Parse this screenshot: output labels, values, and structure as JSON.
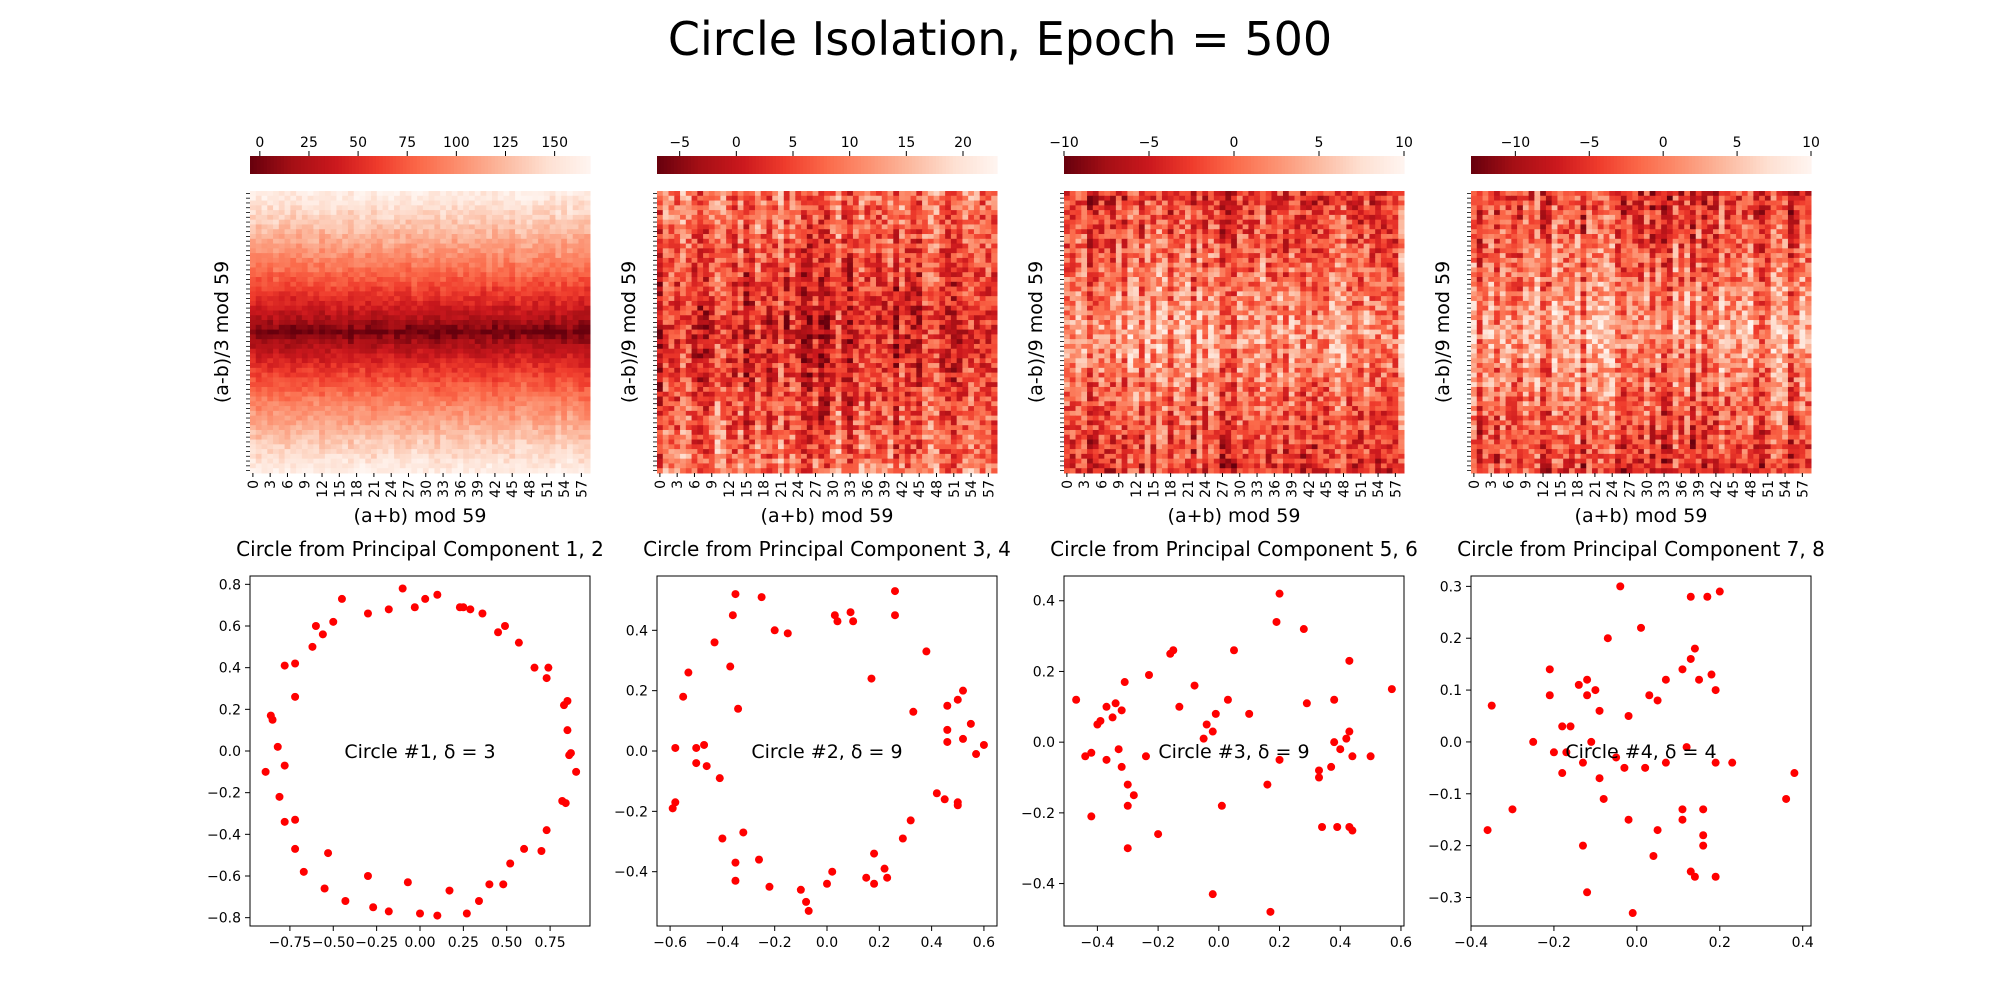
{
  "figure": {
    "title": "Circle Isolation, Epoch = 500"
  },
  "chart_data": [
    {
      "type": "heatmap",
      "xlabel": "(a+b) mod 59",
      "ylabel": "(a-b)/3 mod 59",
      "x_tick_labels": [
        "0",
        "3",
        "6",
        "9",
        "12",
        "15",
        "18",
        "21",
        "24",
        "27",
        "30",
        "33",
        "36",
        "39",
        "42",
        "45",
        "48",
        "51",
        "54",
        "57"
      ],
      "grid_size": [
        59,
        59
      ],
      "colorbar": {
        "ticks": [
          0,
          25,
          50,
          75,
          100,
          125,
          150
        ],
        "tick_labels": [
          "0",
          "25",
          "50",
          "75",
          "100",
          "125",
          "150"
        ],
        "range": [
          -5,
          168
        ],
        "placement": "top",
        "colormap": "Reds_r"
      },
      "pattern": "horizontal band; values lowest near center row, increasing toward top and bottom"
    },
    {
      "type": "heatmap",
      "xlabel": "(a+b) mod 59",
      "ylabel": "(a-b)/9 mod 59",
      "x_tick_labels": [
        "0",
        "3",
        "6",
        "9",
        "12",
        "15",
        "18",
        "21",
        "24",
        "27",
        "30",
        "33",
        "36",
        "39",
        "42",
        "45",
        "48",
        "51",
        "54",
        "57"
      ],
      "grid_size": [
        59,
        59
      ],
      "colorbar": {
        "ticks": [
          -5,
          0,
          5,
          10,
          15,
          20
        ],
        "tick_labels": [
          "−5",
          "0",
          "5",
          "10",
          "15",
          "20"
        ],
        "range": [
          -7,
          23
        ],
        "placement": "top",
        "colormap": "Reds_r"
      },
      "pattern": "noisy, darker in middle band, vertical stripes"
    },
    {
      "type": "heatmap",
      "xlabel": "(a+b) mod 59",
      "ylabel": "(a-b)/9 mod 59",
      "x_tick_labels": [
        "0",
        "3",
        "6",
        "9",
        "12",
        "15",
        "18",
        "21",
        "24",
        "27",
        "30",
        "33",
        "36",
        "39",
        "42",
        "45",
        "48",
        "51",
        "54",
        "57"
      ],
      "grid_size": [
        59,
        59
      ],
      "colorbar": {
        "ticks": [
          -10,
          -5,
          0,
          5,
          10
        ],
        "tick_labels": [
          "−10",
          "−5",
          "0",
          "5",
          "10"
        ],
        "range": [
          -10,
          10
        ],
        "placement": "top",
        "colormap": "Reds_r"
      },
      "pattern": "noisy, lighter in middle band, vertical stripes"
    },
    {
      "type": "heatmap",
      "xlabel": "(a+b) mod 59",
      "ylabel": "(a-b)/9 mod 59",
      "x_tick_labels": [
        "0",
        "3",
        "6",
        "9",
        "12",
        "15",
        "18",
        "21",
        "24",
        "27",
        "30",
        "33",
        "36",
        "39",
        "42",
        "45",
        "48",
        "51",
        "54",
        "57"
      ],
      "grid_size": [
        59,
        59
      ],
      "colorbar": {
        "ticks": [
          -10,
          -5,
          0,
          5,
          10
        ],
        "tick_labels": [
          "−10",
          "−5",
          "0",
          "5",
          "10"
        ],
        "range": [
          -13,
          10
        ],
        "placement": "top",
        "colormap": "Reds_r"
      },
      "pattern": "noisy, lighter in middle band, vertical stripes"
    },
    {
      "type": "scatter",
      "title": "Circle from Principal Component 1, 2",
      "annotation": "Circle #1, δ = 3",
      "color": "#ff0000",
      "xlim": [
        -0.98,
        0.98
      ],
      "ylim": [
        -0.84,
        0.84
      ],
      "x_ticks": [
        -0.75,
        -0.5,
        -0.25,
        0,
        0.25,
        0.5,
        0.75
      ],
      "x_tick_labels": [
        "−0.75",
        "−0.50",
        "−0.25",
        "0.00",
        "0.25",
        "0.50",
        "0.75"
      ],
      "y_ticks": [
        -0.8,
        -0.6,
        -0.4,
        -0.2,
        0,
        0.2,
        0.4,
        0.6,
        0.8
      ],
      "y_tick_labels": [
        "−0.8",
        "−0.6",
        "−0.4",
        "−0.2",
        "0.0",
        "0.2",
        "0.4",
        "0.6",
        "0.8"
      ],
      "points": [
        [
          -0.1,
          0.78
        ],
        [
          0.1,
          0.75
        ],
        [
          0.03,
          0.73
        ],
        [
          -0.03,
          0.69
        ],
        [
          -0.18,
          0.68
        ],
        [
          -0.3,
          0.66
        ],
        [
          -0.45,
          0.73
        ],
        [
          -0.5,
          0.62
        ],
        [
          -0.6,
          0.6
        ],
        [
          -0.56,
          0.56
        ],
        [
          -0.62,
          0.5
        ],
        [
          -0.72,
          0.42
        ],
        [
          -0.78,
          0.41
        ],
        [
          -0.72,
          0.26
        ],
        [
          -0.86,
          0.17
        ],
        [
          -0.85,
          0.15
        ],
        [
          -0.82,
          0.02
        ],
        [
          -0.78,
          -0.07
        ],
        [
          -0.89,
          -0.1
        ],
        [
          -0.81,
          -0.22
        ],
        [
          -0.78,
          -0.34
        ],
        [
          -0.72,
          -0.33
        ],
        [
          -0.72,
          -0.47
        ],
        [
          -0.67,
          -0.58
        ],
        [
          -0.53,
          -0.49
        ],
        [
          -0.55,
          -0.66
        ],
        [
          -0.43,
          -0.72
        ],
        [
          -0.3,
          -0.6
        ],
        [
          -0.27,
          -0.75
        ],
        [
          -0.18,
          -0.77
        ],
        [
          -0.07,
          -0.63
        ],
        [
          0.0,
          -0.78
        ],
        [
          0.1,
          -0.79
        ],
        [
          0.17,
          -0.67
        ],
        [
          0.27,
          -0.78
        ],
        [
          0.34,
          -0.72
        ],
        [
          0.4,
          -0.64
        ],
        [
          0.48,
          -0.64
        ],
        [
          0.52,
          -0.54
        ],
        [
          0.6,
          -0.47
        ],
        [
          0.7,
          -0.48
        ],
        [
          0.73,
          -0.38
        ],
        [
          0.82,
          -0.24
        ],
        [
          0.84,
          -0.25
        ],
        [
          0.9,
          -0.1
        ],
        [
          0.87,
          -0.01
        ],
        [
          0.86,
          -0.02
        ],
        [
          0.85,
          0.1
        ],
        [
          0.83,
          0.22
        ],
        [
          0.85,
          0.24
        ],
        [
          0.73,
          0.35
        ],
        [
          0.74,
          0.4
        ],
        [
          0.66,
          0.4
        ],
        [
          0.57,
          0.52
        ],
        [
          0.49,
          0.6
        ],
        [
          0.45,
          0.57
        ],
        [
          0.36,
          0.66
        ],
        [
          0.29,
          0.68
        ],
        [
          0.23,
          0.69
        ],
        [
          0.25,
          0.69
        ]
      ]
    },
    {
      "type": "scatter",
      "title": "Circle from Principal Component 3, 4",
      "annotation": "Circle #2, δ = 9",
      "color": "#ff0000",
      "xlim": [
        -0.65,
        0.65
      ],
      "ylim": [
        -0.58,
        0.58
      ],
      "x_ticks": [
        -0.6,
        -0.4,
        -0.2,
        0,
        0.2,
        0.4,
        0.6
      ],
      "x_tick_labels": [
        "−0.6",
        "−0.4",
        "−0.2",
        "0.0",
        "0.2",
        "0.4",
        "0.6"
      ],
      "y_ticks": [
        -0.4,
        -0.2,
        0,
        0.2,
        0.4
      ],
      "y_tick_labels": [
        "−0.4",
        "−0.2",
        "0.0",
        "0.2",
        "0.4"
      ],
      "points": [
        [
          -0.35,
          0.52
        ],
        [
          -0.25,
          0.51
        ],
        [
          0.26,
          0.53
        ],
        [
          0.03,
          0.45
        ],
        [
          0.09,
          0.46
        ],
        [
          0.04,
          0.43
        ],
        [
          0.1,
          0.43
        ],
        [
          0.26,
          0.45
        ],
        [
          -0.36,
          0.45
        ],
        [
          -0.2,
          0.4
        ],
        [
          -0.15,
          0.39
        ],
        [
          -0.43,
          0.36
        ],
        [
          0.38,
          0.33
        ],
        [
          -0.37,
          0.28
        ],
        [
          -0.53,
          0.26
        ],
        [
          0.17,
          0.24
        ],
        [
          -0.55,
          0.18
        ],
        [
          -0.34,
          0.14
        ],
        [
          0.52,
          0.2
        ],
        [
          0.5,
          0.17
        ],
        [
          0.46,
          0.15
        ],
        [
          0.33,
          0.13
        ],
        [
          0.55,
          0.09
        ],
        [
          0.46,
          0.07
        ],
        [
          0.6,
          0.02
        ],
        [
          0.46,
          0.03
        ],
        [
          0.52,
          0.04
        ],
        [
          0.57,
          -0.01
        ],
        [
          -0.58,
          0.01
        ],
        [
          -0.5,
          0.01
        ],
        [
          -0.47,
          0.02
        ],
        [
          -0.5,
          -0.04
        ],
        [
          -0.46,
          -0.05
        ],
        [
          -0.41,
          -0.09
        ],
        [
          -0.58,
          -0.17
        ],
        [
          -0.59,
          -0.19
        ],
        [
          0.42,
          -0.14
        ],
        [
          0.45,
          -0.16
        ],
        [
          0.5,
          -0.17
        ],
        [
          0.5,
          -0.18
        ],
        [
          -0.32,
          -0.27
        ],
        [
          -0.4,
          -0.29
        ],
        [
          0.32,
          -0.23
        ],
        [
          0.29,
          -0.29
        ],
        [
          -0.35,
          -0.37
        ],
        [
          -0.26,
          -0.36
        ],
        [
          0.18,
          -0.34
        ],
        [
          0.22,
          -0.39
        ],
        [
          0.15,
          -0.42
        ],
        [
          0.23,
          -0.42
        ],
        [
          0.18,
          -0.44
        ],
        [
          -0.35,
          -0.43
        ],
        [
          0.02,
          -0.4
        ],
        [
          -0.22,
          -0.45
        ],
        [
          -0.1,
          -0.46
        ],
        [
          0.0,
          -0.44
        ],
        [
          -0.08,
          -0.5
        ],
        [
          -0.07,
          -0.53
        ]
      ]
    },
    {
      "type": "scatter",
      "title": "Circle from Principal Component 5, 6",
      "annotation": "Circle #3, δ = 9",
      "color": "#ff0000",
      "xlim": [
        -0.51,
        0.61
      ],
      "ylim": [
        -0.52,
        0.47
      ],
      "x_ticks": [
        -0.4,
        -0.2,
        0,
        0.2,
        0.4,
        0.6
      ],
      "x_tick_labels": [
        "−0.4",
        "−0.2",
        "0.0",
        "0.2",
        "0.4",
        "0.6"
      ],
      "y_ticks": [
        -0.4,
        -0.2,
        0,
        0.2,
        0.4
      ],
      "y_tick_labels": [
        "−0.4",
        "−0.2",
        "0.0",
        "0.2",
        "0.4"
      ],
      "points": [
        [
          0.2,
          0.42
        ],
        [
          0.19,
          0.34
        ],
        [
          0.28,
          0.32
        ],
        [
          -0.15,
          0.26
        ],
        [
          -0.16,
          0.25
        ],
        [
          0.05,
          0.26
        ],
        [
          0.57,
          0.15
        ],
        [
          0.43,
          0.23
        ],
        [
          -0.23,
          0.19
        ],
        [
          -0.31,
          0.17
        ],
        [
          -0.08,
          0.16
        ],
        [
          0.03,
          0.12
        ],
        [
          0.1,
          0.08
        ],
        [
          -0.47,
          0.12
        ],
        [
          -0.37,
          0.1
        ],
        [
          -0.34,
          0.11
        ],
        [
          -0.32,
          0.09
        ],
        [
          -0.39,
          0.06
        ],
        [
          -0.4,
          0.05
        ],
        [
          -0.35,
          0.07
        ],
        [
          -0.13,
          0.1
        ],
        [
          -0.01,
          0.08
        ],
        [
          0.29,
          0.11
        ],
        [
          0.38,
          0.12
        ],
        [
          -0.42,
          -0.03
        ],
        [
          -0.44,
          -0.04
        ],
        [
          -0.37,
          -0.05
        ],
        [
          -0.33,
          -0.02
        ],
        [
          -0.32,
          -0.07
        ],
        [
          -0.24,
          -0.04
        ],
        [
          -0.05,
          0.01
        ],
        [
          -0.02,
          0.03
        ],
        [
          0.2,
          -0.05
        ],
        [
          0.33,
          -0.08
        ],
        [
          0.33,
          -0.1
        ],
        [
          0.37,
          -0.07
        ],
        [
          0.4,
          -0.02
        ],
        [
          0.43,
          0.03
        ],
        [
          0.44,
          -0.04
        ],
        [
          0.5,
          -0.04
        ],
        [
          0.38,
          0.0
        ],
        [
          0.42,
          0.01
        ],
        [
          -0.3,
          -0.12
        ],
        [
          -0.28,
          -0.15
        ],
        [
          -0.3,
          -0.18
        ],
        [
          -0.2,
          -0.26
        ],
        [
          0.01,
          -0.18
        ],
        [
          0.16,
          -0.12
        ],
        [
          -0.42,
          -0.21
        ],
        [
          -0.3,
          -0.3
        ],
        [
          0.34,
          -0.24
        ],
        [
          0.39,
          -0.24
        ],
        [
          0.43,
          -0.24
        ],
        [
          0.44,
          -0.25
        ],
        [
          -0.02,
          -0.43
        ],
        [
          0.17,
          -0.48
        ],
        [
          -0.04,
          0.05
        ]
      ]
    },
    {
      "type": "scatter",
      "title": "Circle from Principal Component 7, 8",
      "annotation": "Circle #4, δ = 4",
      "color": "#ff0000",
      "xlim": [
        -0.4,
        0.42
      ],
      "ylim": [
        -0.355,
        0.32
      ],
      "x_ticks": [
        -0.4,
        -0.2,
        0,
        0.2,
        0.4
      ],
      "x_tick_labels": [
        "−0.4",
        "−0.2",
        "0.0",
        "0.2",
        "0.4"
      ],
      "y_ticks": [
        -0.3,
        -0.2,
        -0.1,
        0,
        0.1,
        0.2,
        0.3
      ],
      "y_tick_labels": [
        "−0.3",
        "−0.2",
        "−0.1",
        "0.0",
        "0.1",
        "0.2",
        "0.3"
      ],
      "points": [
        [
          -0.04,
          0.3
        ],
        [
          0.01,
          0.22
        ],
        [
          0.2,
          0.29
        ],
        [
          0.17,
          0.28
        ],
        [
          0.13,
          0.28
        ],
        [
          -0.07,
          0.2
        ],
        [
          0.14,
          0.18
        ],
        [
          0.13,
          0.16
        ],
        [
          0.11,
          0.14
        ],
        [
          0.18,
          0.13
        ],
        [
          0.15,
          0.12
        ],
        [
          -0.21,
          0.14
        ],
        [
          -0.14,
          0.11
        ],
        [
          -0.12,
          0.12
        ],
        [
          -0.1,
          0.1
        ],
        [
          0.07,
          0.12
        ],
        [
          0.19,
          0.1
        ],
        [
          -0.21,
          0.09
        ],
        [
          -0.12,
          0.09
        ],
        [
          -0.09,
          0.06
        ],
        [
          0.05,
          0.08
        ],
        [
          0.03,
          0.09
        ],
        [
          -0.02,
          0.05
        ],
        [
          -0.35,
          0.07
        ],
        [
          -0.18,
          0.03
        ],
        [
          -0.16,
          0.03
        ],
        [
          -0.25,
          0.0
        ],
        [
          -0.2,
          -0.02
        ],
        [
          -0.17,
          -0.02
        ],
        [
          -0.11,
          0.0
        ],
        [
          -0.05,
          -0.03
        ],
        [
          -0.03,
          -0.05
        ],
        [
          0.02,
          -0.05
        ],
        [
          0.07,
          -0.04
        ],
        [
          0.12,
          -0.01
        ],
        [
          0.19,
          -0.04
        ],
        [
          0.23,
          -0.04
        ],
        [
          -0.18,
          -0.06
        ],
        [
          -0.13,
          -0.04
        ],
        [
          0.38,
          -0.06
        ],
        [
          -0.08,
          -0.11
        ],
        [
          0.36,
          -0.11
        ],
        [
          -0.3,
          -0.13
        ],
        [
          0.11,
          -0.13
        ],
        [
          0.16,
          -0.13
        ],
        [
          0.11,
          -0.15
        ],
        [
          0.16,
          -0.18
        ],
        [
          -0.02,
          -0.15
        ],
        [
          -0.36,
          -0.17
        ],
        [
          -0.13,
          -0.2
        ],
        [
          0.16,
          -0.2
        ],
        [
          0.04,
          -0.22
        ],
        [
          0.13,
          -0.25
        ],
        [
          0.14,
          -0.26
        ],
        [
          0.19,
          -0.26
        ],
        [
          -0.12,
          -0.29
        ],
        [
          -0.01,
          -0.33
        ],
        [
          0.05,
          -0.17
        ],
        [
          -0.09,
          -0.07
        ]
      ]
    }
  ]
}
